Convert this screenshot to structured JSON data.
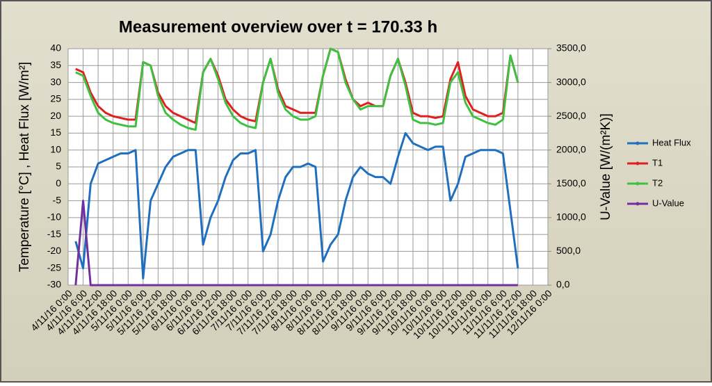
{
  "chart_data": {
    "type": "line",
    "title": "Measurement overview over t = 170.33 h",
    "ylabel": "Temperature [°C] ,   Heat Flux [W/m²]",
    "y2label": "U-Value [W/(m²K)]",
    "xlim": [
      0,
      192
    ],
    "xticks": [
      {
        "value": 0,
        "label": "4/11/16 0:00"
      },
      {
        "value": 6,
        "label": "4/11/16 6:00"
      },
      {
        "value": 12,
        "label": "4/11/16 12:00"
      },
      {
        "value": 18,
        "label": "4/11/16 18:00"
      },
      {
        "value": 24,
        "label": "5/11/16 0:00"
      },
      {
        "value": 30,
        "label": "5/11/16 6:00"
      },
      {
        "value": 36,
        "label": "5/11/16 12:00"
      },
      {
        "value": 42,
        "label": "5/11/16 18:00"
      },
      {
        "value": 48,
        "label": "6/11/16 0:00"
      },
      {
        "value": 54,
        "label": "6/11/16 6:00"
      },
      {
        "value": 60,
        "label": "6/11/16 12:00"
      },
      {
        "value": 66,
        "label": "6/11/16 18:00"
      },
      {
        "value": 72,
        "label": "7/11/16 0:00"
      },
      {
        "value": 78,
        "label": "7/11/16 6:00"
      },
      {
        "value": 84,
        "label": "7/11/16 12:00"
      },
      {
        "value": 90,
        "label": "7/11/16 18:00"
      },
      {
        "value": 96,
        "label": "8/11/16 0:00"
      },
      {
        "value": 102,
        "label": "8/11/16 6:00"
      },
      {
        "value": 108,
        "label": "8/11/16 12:00"
      },
      {
        "value": 114,
        "label": "8/11/16 18:00"
      },
      {
        "value": 120,
        "label": "9/11/16 0:00"
      },
      {
        "value": 126,
        "label": "9/11/16 6:00"
      },
      {
        "value": 132,
        "label": "9/11/16 12:00"
      },
      {
        "value": 138,
        "label": "9/11/16 18:00"
      },
      {
        "value": 144,
        "label": "10/11/16 0:00"
      },
      {
        "value": 150,
        "label": "10/11/16 6:00"
      },
      {
        "value": 156,
        "label": "10/11/16 12:00"
      },
      {
        "value": 162,
        "label": "10/11/16 18:00"
      },
      {
        "value": 168,
        "label": "11/11/16 0:00"
      },
      {
        "value": 174,
        "label": "11/11/16 6:00"
      },
      {
        "value": 180,
        "label": "11/11/16 12:00"
      },
      {
        "value": 186,
        "label": "11/11/16 18:00"
      },
      {
        "value": 192,
        "label": "12/11/16 0:00"
      }
    ],
    "ylim": [
      -30,
      40
    ],
    "yticks": [
      -30,
      -25,
      -20,
      -15,
      -10,
      -5,
      0,
      5,
      10,
      15,
      20,
      25,
      30,
      35,
      40
    ],
    "y2lim": [
      0,
      3500
    ],
    "y2ticks": [
      {
        "value": 0,
        "label": "0,0"
      },
      {
        "value": 500,
        "label": "500,0"
      },
      {
        "value": 1000,
        "label": "1000,0"
      },
      {
        "value": 1500,
        "label": "1500,0"
      },
      {
        "value": 2000,
        "label": "2000,0"
      },
      {
        "value": 2500,
        "label": "2500,0"
      },
      {
        "value": 3000,
        "label": "3000,0"
      },
      {
        "value": 3500,
        "label": "3500,0"
      }
    ],
    "grid": true,
    "legend": "right",
    "x": [
      3,
      6,
      9,
      12,
      15,
      18,
      21,
      24,
      27,
      30,
      33,
      36,
      39,
      42,
      45,
      48,
      51,
      54,
      57,
      60,
      63,
      66,
      69,
      72,
      75,
      78,
      81,
      84,
      87,
      90,
      93,
      96,
      99,
      102,
      105,
      108,
      111,
      114,
      117,
      120,
      123,
      126,
      129,
      132,
      135,
      138,
      141,
      144,
      147,
      150,
      153,
      156,
      159,
      162,
      165,
      168,
      171,
      174,
      177,
      180
    ],
    "series": [
      {
        "name": "Heat Flux",
        "color": "#1f6fc0",
        "values": [
          -17,
          -25,
          0,
          6,
          7,
          8,
          9,
          9,
          10,
          -28,
          -5,
          0,
          5,
          8,
          9,
          10,
          10,
          -18,
          -10,
          -5,
          2,
          7,
          9,
          9,
          10,
          -20,
          -15,
          -5,
          2,
          5,
          5,
          6,
          5,
          -23,
          -18,
          -15,
          -5,
          2,
          5,
          3,
          2,
          2,
          0,
          8,
          15,
          12,
          11,
          10,
          11,
          11,
          -5,
          0,
          8,
          9,
          10,
          10,
          10,
          9,
          -8,
          -25
        ]
      },
      {
        "name": "T1",
        "color": "#e02020",
        "values": [
          34,
          33,
          27,
          23,
          21,
          20,
          19.5,
          19,
          19,
          36,
          35,
          27,
          23,
          21,
          20,
          19,
          18,
          33,
          37,
          32,
          25,
          22,
          20,
          19,
          18.5,
          30,
          37,
          28,
          23,
          22,
          21,
          21,
          21,
          32,
          40,
          39,
          31,
          25,
          23,
          24,
          23,
          23,
          32,
          37,
          30,
          21,
          20,
          20,
          19.5,
          20,
          31,
          36,
          26,
          22,
          21,
          20,
          20,
          21,
          38,
          30
        ]
      },
      {
        "name": "T2",
        "color": "#40c040",
        "values": [
          33,
          32,
          26,
          21,
          19,
          18,
          17.5,
          17,
          17,
          36,
          35,
          26,
          21,
          19,
          17.5,
          16.5,
          16,
          33,
          37,
          31,
          24,
          20,
          18,
          17,
          16.5,
          30,
          37,
          27,
          22,
          20,
          19,
          19,
          20,
          32,
          40,
          39,
          30,
          25,
          22,
          23,
          23,
          23,
          32,
          37,
          29,
          19,
          18,
          18,
          17.5,
          18,
          30,
          33,
          24,
          20,
          19,
          18,
          17.5,
          19,
          38,
          30
        ]
      },
      {
        "name": "U-Value",
        "color": "#7030a0",
        "axis": "y2",
        "values": [
          0,
          1250,
          0,
          0,
          0,
          0,
          0,
          0,
          0,
          0,
          0,
          0,
          0,
          0,
          0,
          0,
          0,
          0,
          0,
          0,
          0,
          0,
          0,
          0,
          0,
          0,
          0,
          0,
          0,
          0,
          0,
          0,
          0,
          0,
          0,
          0,
          0,
          0,
          0,
          0,
          0,
          0,
          0,
          0,
          0,
          0,
          0,
          0,
          0,
          0,
          0,
          0,
          0,
          0,
          0,
          0,
          0,
          0,
          0,
          0
        ]
      }
    ]
  }
}
